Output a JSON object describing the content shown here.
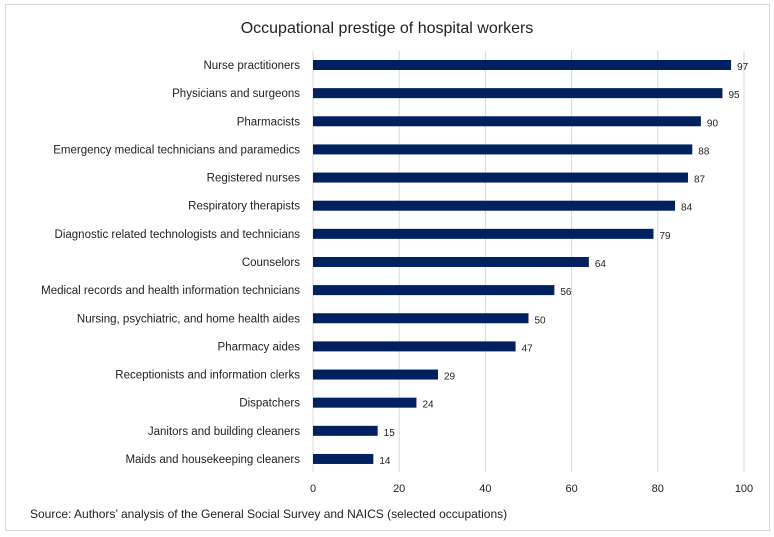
{
  "chart_data": {
    "type": "bar",
    "orientation": "horizontal",
    "title": "Occupational prestige of hospital workers",
    "categories": [
      "Nurse practitioners",
      "Physicians and surgeons",
      "Pharmacists",
      "Emergency medical technicians and paramedics",
      "Registered nurses",
      "Respiratory therapists",
      "Diagnostic related technologists and technicians",
      "Counselors",
      "Medical records and health information technicians",
      "Nursing, psychiatric, and home health aides",
      "Pharmacy aides",
      "Receptionists and information clerks",
      "Dispatchers",
      "Janitors and building cleaners",
      "Maids and housekeeping cleaners"
    ],
    "values": [
      97,
      95,
      90,
      88,
      87,
      84,
      79,
      64,
      56,
      50,
      47,
      29,
      24,
      15,
      14
    ],
    "xlim": [
      0,
      100
    ],
    "xticks": [
      0,
      20,
      40,
      60,
      80,
      100
    ],
    "xlabel": "",
    "ylabel": "",
    "grid": true,
    "data_labels": true,
    "bar_color": "#002060",
    "source": "Source: Authors’ analysis of the General Social Survey and NAICS (selected occupations)"
  }
}
